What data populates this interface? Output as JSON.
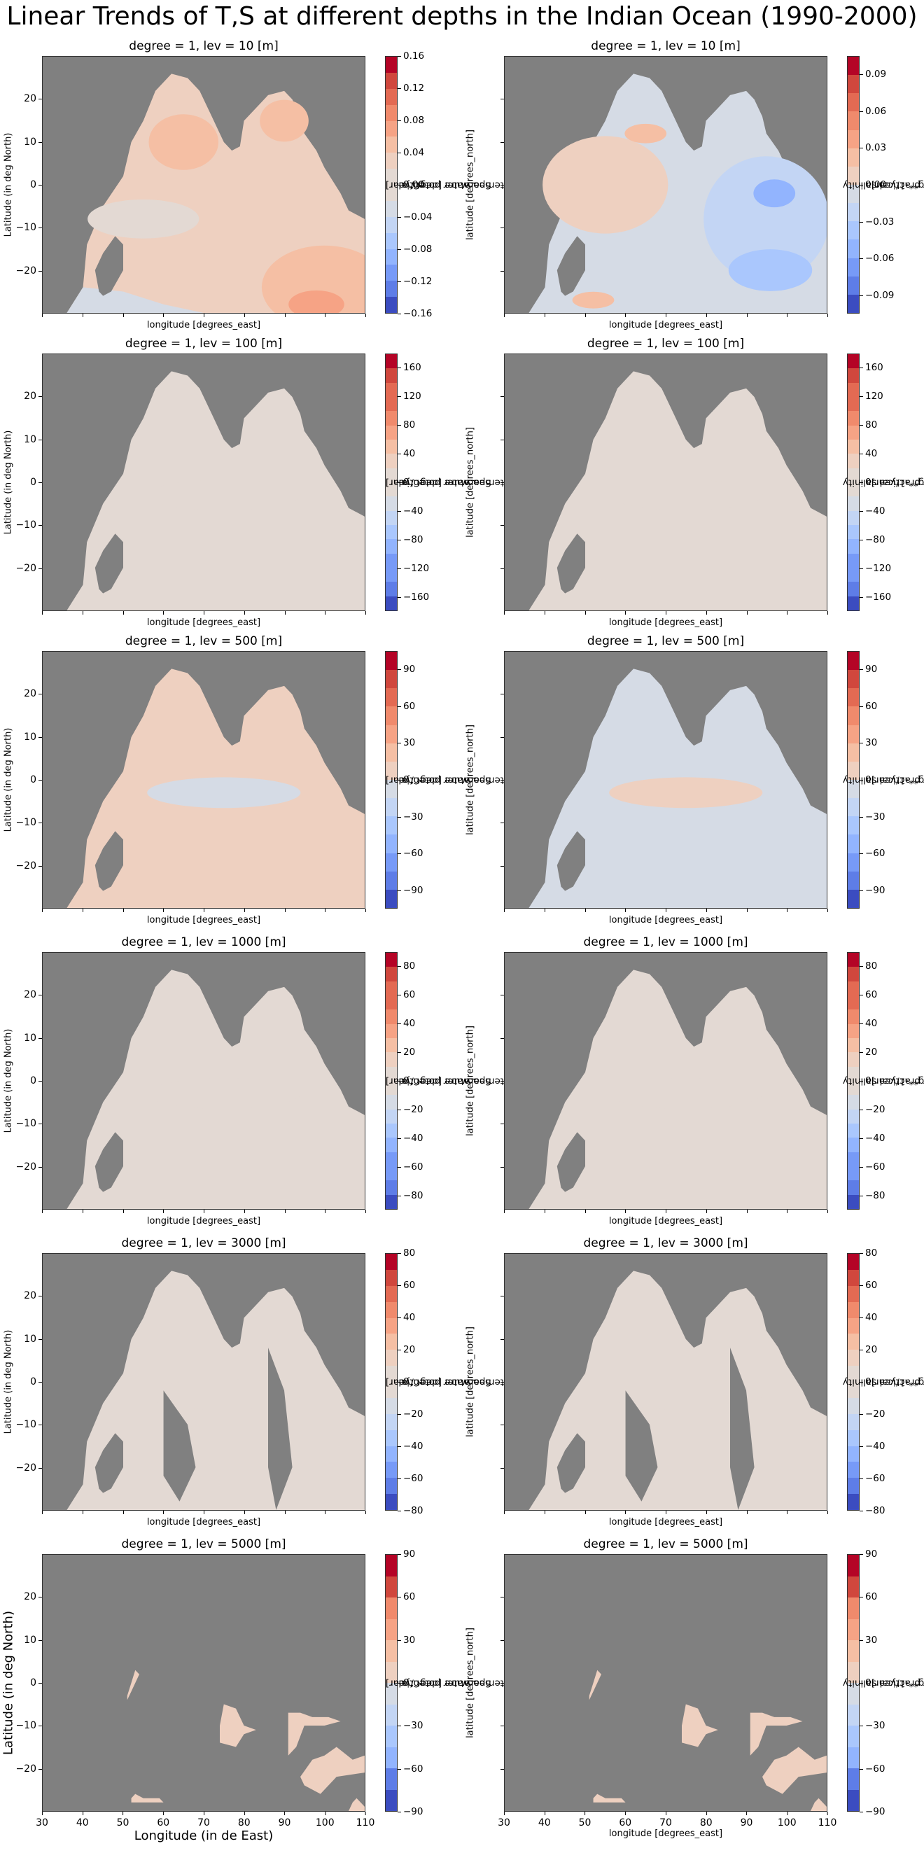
{
  "figure": {
    "title": "Linear Trends of T,S at different depths in the Indian Ocean (1990-2000)"
  },
  "colors": {
    "land": "#808080",
    "coolwarm_14": [
      "#b40426",
      "#d0473d",
      "#e36a53",
      "#f08a6c",
      "#f6a385",
      "#f5bfa4",
      "#eed0c0",
      "#e3d9d3",
      "#d5dbe5",
      "#c3d5f4",
      "#aac7fd",
      "#92b4fe",
      "#779af7",
      "#5e7de7",
      "#3b4cc0"
    ]
  },
  "chart_data": [
    {
      "type": "heatmap",
      "row": 0,
      "col": 0,
      "title": "degree = 1, lev = 10 [m]",
      "variable": "Sea water potential temperature [degC/year]",
      "xlabel": "longitude [degrees_east]",
      "ylabel": "Latitude (in deg North)",
      "xlim": [
        30,
        110
      ],
      "ylim": [
        -30,
        30
      ],
      "yticks": [
        20,
        10,
        0,
        -10,
        -20
      ],
      "xticks_labeled": false,
      "colorbar": {
        "ticks": [
          "0.16",
          "0.12",
          "0.08",
          "0.04",
          "0.00",
          "−0.04",
          "−0.08",
          "−0.12",
          "−0.16"
        ],
        "range": [
          -0.16,
          0.16
        ],
        "levels": 16,
        "label_lines": [
          "Sea water potential",
          "temperature [degC/year]"
        ]
      },
      "pattern": "mostly warming (0.02–0.10), strongest SE (~0.14 near 100E,-28); slight cooling south of Madagascar"
    },
    {
      "type": "heatmap",
      "row": 0,
      "col": 1,
      "title": "degree = 1, lev = 10 [m]",
      "variable": "Sea water practical salinity [g kg**-1/year]",
      "xlabel": "longitude [degrees_east]",
      "ylabel": "latitude [degrees_north]",
      "xlim": [
        30,
        110
      ],
      "ylim": [
        -30,
        30
      ],
      "xticks_labeled": false,
      "colorbar": {
        "ticks": [
          "0.09",
          "0.06",
          "0.03",
          "0.00",
          "−0.03",
          "−0.06",
          "−0.09"
        ],
        "range": [
          -0.105,
          0.105
        ],
        "levels": 14,
        "label_lines": [
          "Sea water practical salinity",
          "[g kg**-1/year]"
        ]
      },
      "pattern": "western basin freshening-positive (0.01–0.04); eastern basin negative (-0.02 to -0.06), strongest in Bay of Bengal head"
    },
    {
      "type": "heatmap",
      "row": 1,
      "col": 0,
      "title": "degree = 1, lev = 100 [m]",
      "variable": "Sea water potential temperature [degC/year]",
      "xlabel": "longitude [degrees_east]",
      "ylabel": "Latitude (in deg North)",
      "xlim": [
        30,
        110
      ],
      "ylim": [
        -30,
        30
      ],
      "yticks": [
        20,
        10,
        0,
        -10,
        -20
      ],
      "xticks_labeled": false,
      "colorbar": {
        "ticks": [
          "160",
          "120",
          "80",
          "40",
          "0",
          "−40",
          "−80",
          "−120",
          "−160"
        ],
        "range": [
          -180,
          180
        ],
        "levels": 18,
        "label_lines": [
          "Sea water potential",
          "temperature [degC/year]"
        ]
      },
      "pattern": "near zero everywhere (-20..20)"
    },
    {
      "type": "heatmap",
      "row": 1,
      "col": 1,
      "title": "degree = 1, lev = 100 [m]",
      "variable": "Sea water practical salinity [g kg**-1/year]",
      "xlabel": "longitude [degrees_east]",
      "ylabel": "latitude [degrees_north]",
      "xlim": [
        30,
        110
      ],
      "ylim": [
        -30,
        30
      ],
      "xticks_labeled": false,
      "colorbar": {
        "ticks": [
          "160",
          "120",
          "80",
          "40",
          "0",
          "−40",
          "−80",
          "−120",
          "−160"
        ],
        "range": [
          -180,
          180
        ],
        "levels": 18,
        "label_lines": [
          "Sea water practical salinity",
          "[g kg**-1/year]"
        ]
      },
      "pattern": "near zero everywhere"
    },
    {
      "type": "heatmap",
      "row": 2,
      "col": 0,
      "title": "degree = 1, lev = 500 [m]",
      "variable": "Sea water potential temperature [degC/year]",
      "xlabel": "longitude [degrees_east]",
      "ylabel": "Latitude (in deg North)",
      "xlim": [
        30,
        110
      ],
      "ylim": [
        -30,
        30
      ],
      "yticks": [
        20,
        10,
        0,
        -10,
        -20
      ],
      "xticks_labeled": false,
      "colorbar": {
        "ticks": [
          "90",
          "60",
          "30",
          "0",
          "−30",
          "−60",
          "−90"
        ],
        "range": [
          -105,
          105
        ],
        "levels": 14,
        "label_lines": [
          "Sea water potential",
          "temperature [degC/year]"
        ]
      },
      "pattern": "near zero everywhere"
    },
    {
      "type": "heatmap",
      "row": 2,
      "col": 1,
      "title": "degree = 1, lev = 500 [m]",
      "variable": "Sea water practical salinity [g kg**-1/year]",
      "xlabel": "longitude [degrees_east]",
      "ylabel": "latitude [degrees_north]",
      "xlim": [
        30,
        110
      ],
      "ylim": [
        -30,
        30
      ],
      "xticks_labeled": false,
      "colorbar": {
        "ticks": [
          "90",
          "60",
          "30",
          "0",
          "−30",
          "−60",
          "−90"
        ],
        "range": [
          -105,
          105
        ],
        "levels": 14,
        "label_lines": [
          "Sea water practical salinity",
          "[g kg**-1/year]"
        ]
      },
      "pattern": "near zero everywhere"
    },
    {
      "type": "heatmap",
      "row": 3,
      "col": 0,
      "title": "degree = 1, lev = 1000 [m]",
      "variable": "Sea water potential temperature [degC/year]",
      "xlabel": "longitude [degrees_east]",
      "ylabel": "Latitude (in deg North)",
      "xlim": [
        30,
        110
      ],
      "ylim": [
        -30,
        30
      ],
      "yticks": [
        20,
        10,
        0,
        -10,
        -20
      ],
      "xticks_labeled": false,
      "colorbar": {
        "ticks": [
          "80",
          "60",
          "40",
          "20",
          "0",
          "−20",
          "−40",
          "−60",
          "−80"
        ],
        "range": [
          -90,
          90
        ],
        "levels": 18,
        "label_lines": [
          "Sea water potential",
          "temperature [degC/year]"
        ]
      },
      "pattern": "near zero everywhere"
    },
    {
      "type": "heatmap",
      "row": 3,
      "col": 1,
      "title": "degree = 1, lev = 1000 [m]",
      "variable": "Sea water practical salinity [g kg**-1/year]",
      "xlabel": "longitude [degrees_east]",
      "ylabel": "latitude [degrees_north]",
      "xlim": [
        30,
        110
      ],
      "ylim": [
        -30,
        30
      ],
      "xticks_labeled": false,
      "colorbar": {
        "ticks": [
          "80",
          "60",
          "40",
          "20",
          "0",
          "−20",
          "−40",
          "−60",
          "−80"
        ],
        "range": [
          -90,
          90
        ],
        "levels": 18,
        "label_lines": [
          "Sea water practical salinity",
          "[g kg**-1/year]"
        ]
      },
      "pattern": "near zero everywhere"
    },
    {
      "type": "heatmap",
      "row": 4,
      "col": 0,
      "title": "degree = 1, lev = 3000 [m]",
      "variable": "Sea water potential temperature [degC/year]",
      "xlabel": "longitude [degrees_east]",
      "ylabel": "Latitude (in deg North)",
      "xlim": [
        30,
        110
      ],
      "ylim": [
        -30,
        30
      ],
      "yticks": [
        20,
        10,
        0,
        -10,
        -20
      ],
      "xticks_labeled": false,
      "colorbar": {
        "ticks": [
          "80",
          "60",
          "40",
          "20",
          "0",
          "−20",
          "−40",
          "−60",
          "−80"
        ],
        "range": [
          -80,
          80
        ],
        "levels": 16,
        "label_lines": [
          "Sea water potential",
          "temperature [degC/year]"
        ]
      },
      "pattern": "near zero everywhere"
    },
    {
      "type": "heatmap",
      "row": 4,
      "col": 1,
      "title": "degree = 1, lev = 3000 [m]",
      "variable": "Sea water practical salinity [g kg**-1/year]",
      "xlabel": "longitude [degrees_east]",
      "ylabel": "latitude [degrees_north]",
      "xlim": [
        30,
        110
      ],
      "ylim": [
        -30,
        30
      ],
      "xticks_labeled": false,
      "colorbar": {
        "ticks": [
          "80",
          "60",
          "40",
          "20",
          "0",
          "−20",
          "−40",
          "−60",
          "−80"
        ],
        "range": [
          -80,
          80
        ],
        "levels": 16,
        "label_lines": [
          "Sea water practical salinity",
          "[g kg**-1/year]"
        ]
      },
      "pattern": "near zero everywhere"
    },
    {
      "type": "heatmap",
      "row": 5,
      "col": 0,
      "title": "degree = 1, lev = 5000 [m]",
      "variable": "Sea water potential temperature [degC/year]",
      "xlabel": "Longitude (in de East)",
      "ylabel": "Latitude (in deg North)",
      "xlim": [
        30,
        110
      ],
      "ylim": [
        -30,
        30
      ],
      "yticks": [
        20,
        10,
        0,
        -10,
        -20
      ],
      "xticks": [
        30,
        40,
        50,
        60,
        70,
        80,
        90,
        100,
        110
      ],
      "colorbar": {
        "ticks": [
          "90",
          "60",
          "30",
          "0",
          "−30",
          "−60",
          "−90"
        ],
        "range": [
          -90,
          90
        ],
        "levels": 12,
        "label_lines": [
          "Sea water potential",
          "temperature [degC/year]"
        ]
      },
      "pattern": "sparse deep basins, near zero"
    },
    {
      "type": "heatmap",
      "row": 5,
      "col": 1,
      "title": "degree = 1, lev = 5000 [m]",
      "variable": "Sea water practical salinity [g kg**-1/year]",
      "xlabel": "longitude [degrees_east]",
      "ylabel": "latitude [degrees_north]",
      "xlim": [
        30,
        110
      ],
      "ylim": [
        -30,
        30
      ],
      "xticks": [
        30,
        40,
        50,
        60,
        70,
        80,
        90,
        100,
        110
      ],
      "colorbar": {
        "ticks": [
          "90",
          "60",
          "30",
          "0",
          "−30",
          "−60",
          "−90"
        ],
        "range": [
          -90,
          90
        ],
        "levels": 12,
        "label_lines": [
          "Sea water practical salinity",
          "[g kg**-1/year]"
        ]
      },
      "pattern": "sparse deep basins, near zero"
    }
  ]
}
